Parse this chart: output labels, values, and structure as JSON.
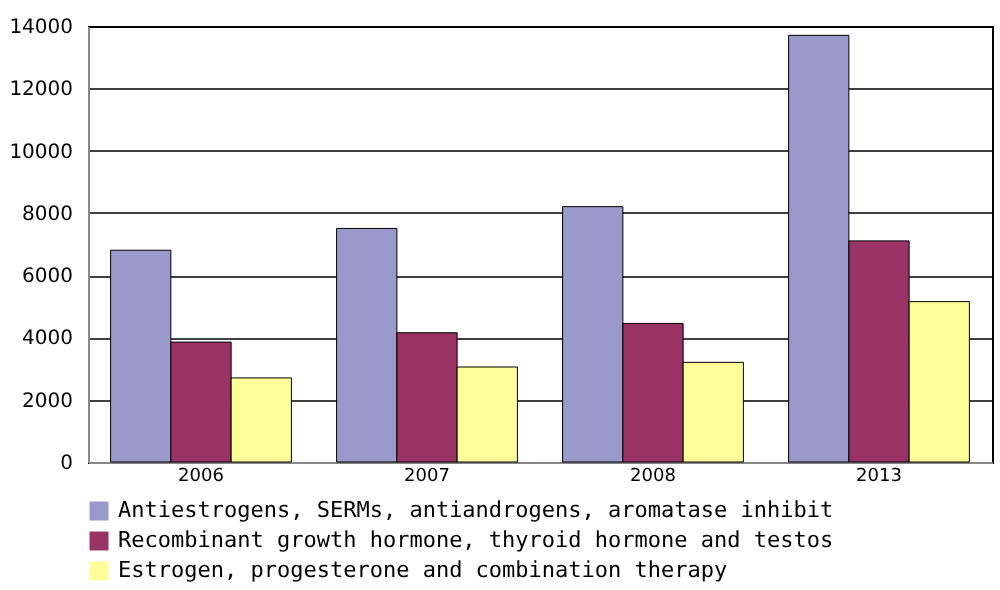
{
  "chart_data": {
    "type": "bar",
    "categories": [
      "2006",
      "2007",
      "2008",
      "2013"
    ],
    "series": [
      {
        "name": "Antiestrogens, SERMs, antiandrogens, aromatase inhibit",
        "color": "#9999cc",
        "values": [
          6800,
          7500,
          8200,
          13700
        ]
      },
      {
        "name": "Recombinant growth hormone, thyroid hormone and testos",
        "color": "#993366",
        "values": [
          3850,
          4150,
          4450,
          7100
        ]
      },
      {
        "name": "Estrogen, progesterone and combination therapy",
        "color": "#ffff99",
        "values": [
          2700,
          3050,
          3200,
          5150
        ]
      }
    ],
    "ylim": [
      0,
      14000
    ],
    "yticks": [
      0,
      2000,
      4000,
      6000,
      8000,
      10000,
      12000,
      14000
    ],
    "grid": "y",
    "legend": "bottom"
  }
}
